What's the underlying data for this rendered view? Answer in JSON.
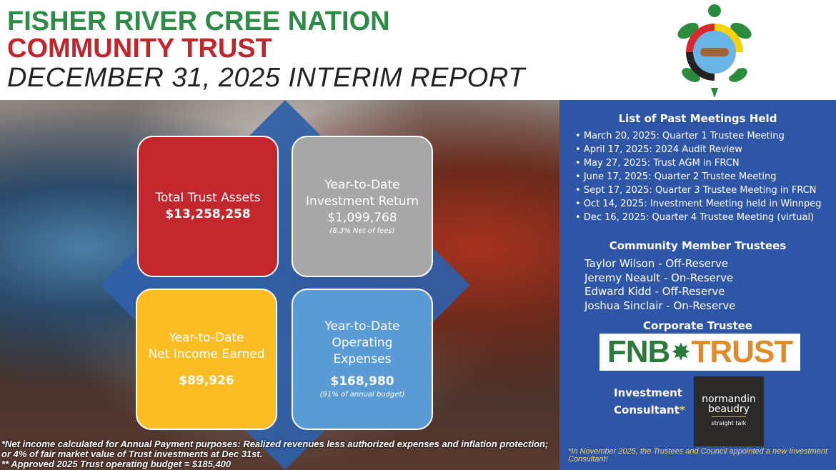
{
  "header": {
    "line1": "FISHER RIVER CREE NATION",
    "line2": "COMMUNITY TRUST",
    "line3": "DECEMBER 31, 2025 INTERIM REPORT"
  },
  "boxes": {
    "assets": {
      "label": "Total Trust Assets",
      "value": "$13,258,258",
      "color": "#c1272d"
    },
    "return": {
      "label1": "Year-to-Date",
      "label2": "Investment Return",
      "value": "$1,099,768",
      "note": "(8.3% Net of fees)",
      "color": "#a7a7a7"
    },
    "income": {
      "label1": "Year-to-Date",
      "label2": "Net Income Earned",
      "value": "$89,926",
      "color": "#fbbd23"
    },
    "expenses": {
      "label1": "Year-to-Date",
      "label2": "Operating",
      "label3": "Expenses",
      "value": "$168,980",
      "note": "(91% of annual budget)",
      "color": "#5b9bd5"
    }
  },
  "footnotes": [
    "*Net income calculated for Annual Payment purposes: Realized revenues less authorized expenses and inflation protection; or 4% of fair market value of Trust investments at Dec 31st.",
    "** Approved 2025 Trust operating budget = $185,400"
  ],
  "panel": {
    "meetings_title": "List of Past Meetings Held",
    "meetings": [
      "March 20, 2025: Quarter 1 Trustee Meeting",
      "April 17, 2025: 2024 Audit Review",
      "May 27, 2025: Trust AGM in FRCN",
      "June 17, 2025: Quarter 2 Trustee Meeting",
      "Sept 17, 2025: Quarter 3 Trustee Meeting in FRCN",
      "Oct 14, 2025: Investment Meeting held in Winnpeg",
      "Dec 16, 2025: Quarter 4 Trustee Meeting (virtual)"
    ],
    "trustees_title": "Community Member Trustees",
    "trustees": [
      "Taylor Wilson - Off-Reserve",
      "Jeremy Neault - On-Reserve",
      "Edward Kidd - Off-Reserve",
      "Joshua Sinclair - On-Reserve"
    ],
    "corporate_title": "Corporate Trustee",
    "fnb_logo": {
      "left": "FNB",
      "right": "TRUST"
    },
    "consultant_label1": "Investment",
    "consultant_label2": "Consultant",
    "consultant_star": "*",
    "consultant_logo": {
      "line1": "normandin",
      "line2": "beaudry",
      "tag": "straight talk"
    },
    "note": "*In November 2025, the Trustees and Council appointed a new Investment Consultant!",
    "color": "#2f56a6"
  }
}
